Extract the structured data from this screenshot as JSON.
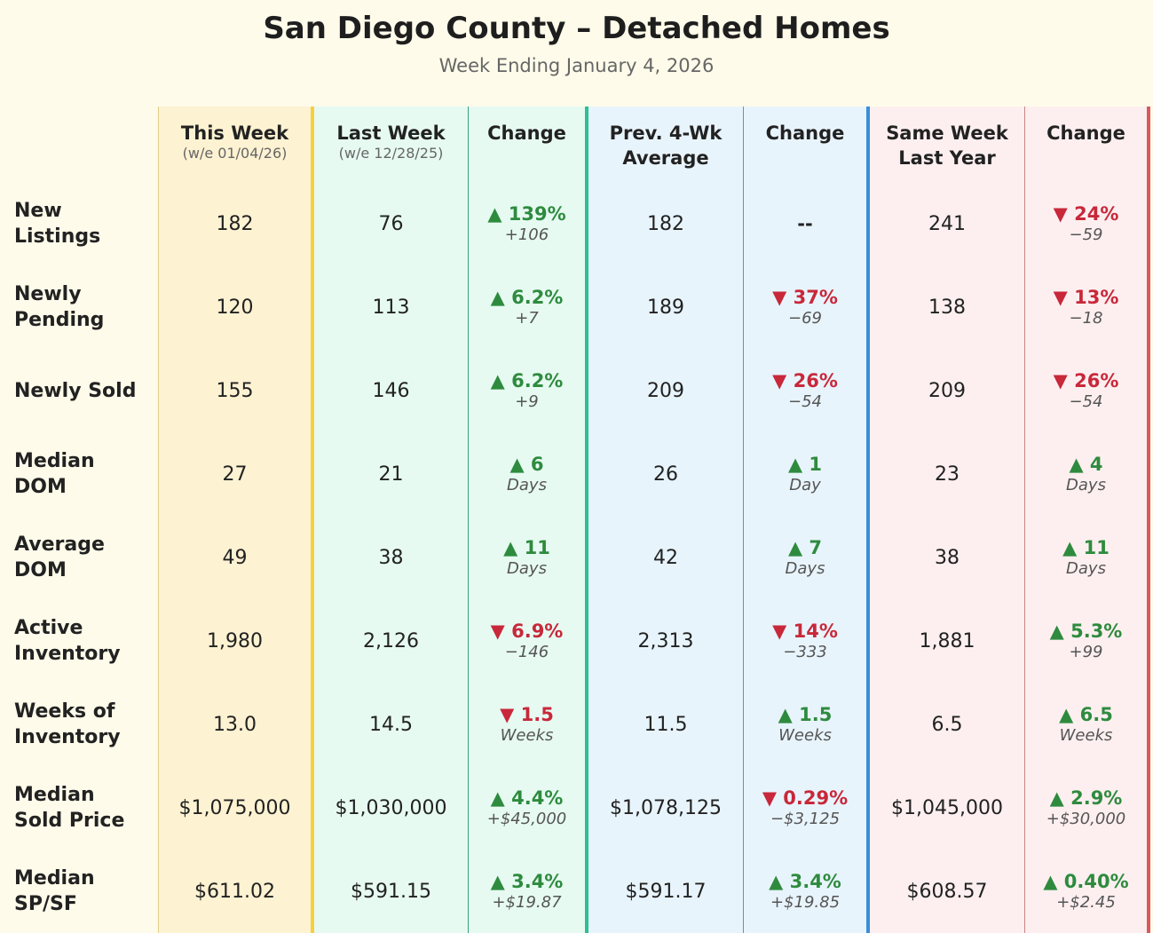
{
  "header": {
    "title": "San Diego County – Detached Homes",
    "subtitle": "Week Ending January 4, 2026"
  },
  "table": {
    "columns": [
      {
        "label": [
          "This Week"
        ],
        "sublabel": "(w/e 01/04/26)"
      },
      {
        "label": [
          "Last Week"
        ],
        "sublabel": "(w/e 12/28/25)"
      },
      {
        "label": [
          "Change"
        ]
      },
      {
        "label": [
          "Prev. 4-Wk",
          "Average"
        ]
      },
      {
        "label": [
          "Change"
        ]
      },
      {
        "label": [
          "Same Week",
          "Last Year"
        ]
      },
      {
        "label": [
          "Change"
        ]
      }
    ],
    "rows": [
      {
        "label": [
          "New",
          "Listings"
        ],
        "cells": [
          "182",
          "76",
          {
            "arrow": "▲",
            "pct": "139%",
            "delta": "+106"
          },
          "182",
          {
            "pct": "--"
          },
          "241",
          {
            "arrow": "▼",
            "pct": "24%",
            "delta": "−59"
          }
        ]
      },
      {
        "label": [
          "Newly",
          "Pending"
        ],
        "cells": [
          "120",
          "113",
          {
            "arrow": "▲",
            "pct": "6.2%",
            "delta": "+7"
          },
          "189",
          {
            "arrow": "▼",
            "pct": "37%",
            "delta": "−69"
          },
          "138",
          {
            "arrow": "▼",
            "pct": "13%",
            "delta": "−18"
          }
        ]
      },
      {
        "label": [
          "Newly Sold"
        ],
        "cells": [
          "155",
          "146",
          {
            "arrow": "▲",
            "pct": "6.2%",
            "delta": "+9"
          },
          "209",
          {
            "arrow": "▼",
            "pct": "26%",
            "delta": "−54"
          },
          "209",
          {
            "arrow": "▼",
            "pct": "26%",
            "delta": "−54"
          }
        ]
      },
      {
        "label": [
          "Median",
          "DOM"
        ],
        "cells": [
          "27",
          "21",
          {
            "arrow": "▲",
            "pct": "6",
            "delta": "Days"
          },
          "26",
          {
            "arrow": "▲",
            "pct": "1",
            "delta": "Day"
          },
          "23",
          {
            "arrow": "▲",
            "pct": "4",
            "delta": "Days"
          }
        ]
      },
      {
        "label": [
          "Average",
          "DOM"
        ],
        "cells": [
          "49",
          "38",
          {
            "arrow": "▲",
            "pct": "11",
            "delta": "Days"
          },
          "42",
          {
            "arrow": "▲",
            "pct": "7",
            "delta": "Days"
          },
          "38",
          {
            "arrow": "▲",
            "pct": "11",
            "delta": "Days"
          }
        ]
      },
      {
        "label": [
          "Active",
          "Inventory"
        ],
        "cells": [
          "1,980",
          "2,126",
          {
            "arrow": "▼",
            "pct": "6.9%",
            "delta": "−146"
          },
          "2,313",
          {
            "arrow": "▼",
            "pct": "14%",
            "delta": "−333"
          },
          "1,881",
          {
            "arrow": "▲",
            "pct": "5.3%",
            "delta": "+99"
          }
        ]
      },
      {
        "label": [
          "Weeks of",
          "Inventory"
        ],
        "cells": [
          "13.0",
          "14.5",
          {
            "arrow": "▼",
            "pct": "1.5",
            "delta": "Weeks"
          },
          "11.5",
          {
            "arrow": "▲",
            "pct": "1.5",
            "delta": "Weeks"
          },
          "6.5",
          {
            "arrow": "▲",
            "pct": "6.5",
            "delta": "Weeks"
          }
        ]
      },
      {
        "label": [
          "Median",
          "Sold Price"
        ],
        "cells": [
          "$1,075,000",
          "$1,030,000",
          {
            "arrow": "▲",
            "pct": "4.4%",
            "delta": "+$45,000"
          },
          "$1,078,125",
          {
            "arrow": "▼",
            "pct": "0.29%",
            "delta": "−$3,125"
          },
          "$1,045,000",
          {
            "arrow": "▲",
            "pct": "2.9%",
            "delta": "+$30,000"
          }
        ]
      },
      {
        "label": [
          "Median",
          "SP/SF"
        ],
        "cells": [
          "$611.02",
          "$591.15",
          {
            "arrow": "▲",
            "pct": "3.4%",
            "delta": "+$19.87"
          },
          "$591.17",
          {
            "arrow": "▲",
            "pct": "3.4%",
            "delta": "+$19.85"
          },
          "$608.57",
          {
            "arrow": "▲",
            "pct": "0.40%",
            "delta": "+$2.45"
          }
        ]
      }
    ]
  }
}
